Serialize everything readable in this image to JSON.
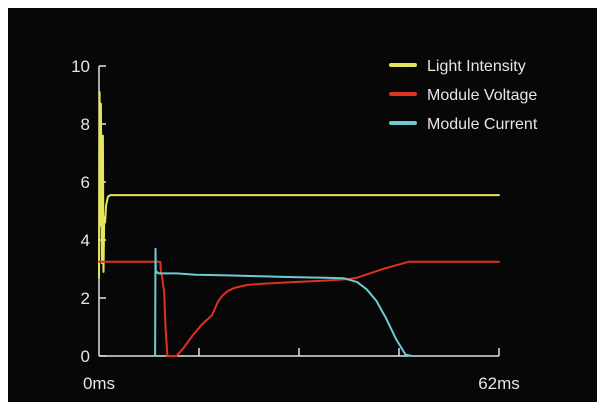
{
  "chart_data": {
    "type": "line",
    "title": "",
    "xlabel": "",
    "ylabel": "",
    "ylim": [
      0,
      10
    ],
    "yticks": [
      "0",
      "2",
      "4",
      "6",
      "8",
      "10"
    ],
    "xlim": [
      0,
      62
    ],
    "xtick_labels": [
      {
        "x": 0,
        "label": "0ms"
      },
      {
        "x": 62,
        "label": "62ms"
      }
    ],
    "legend_position": "top-right",
    "grid": false,
    "colors": {
      "background": "#070707",
      "axis": "#e0e0e0",
      "text": "#e6e6e6"
    },
    "series": [
      {
        "name": "Light Intensity",
        "color": "#e6e65a",
        "x": [
          0,
          0.1,
          0.2,
          0.3,
          0.45,
          0.6,
          0.7,
          0.8,
          0.95,
          1.1,
          1.4,
          1.8,
          2.5,
          62
        ],
        "y": [
          2.7,
          9.1,
          4.5,
          8.7,
          3.2,
          7.6,
          2.9,
          4.8,
          4.6,
          5.2,
          5.5,
          5.55,
          5.55,
          5.55
        ]
      },
      {
        "name": "Module Voltage",
        "color": "#e0301e",
        "x": [
          0,
          9.5,
          9.6,
          9.8,
          10.1,
          10.3,
          10.6,
          12.0,
          13.0,
          14.5,
          16.0,
          17.5,
          18.5,
          19.2,
          20.0,
          21.0,
          23.0,
          26.0,
          30.0,
          35.0,
          38.5,
          40.0,
          44.0,
          48.0,
          52.0,
          62
        ],
        "y": [
          3.25,
          3.25,
          2.9,
          2.7,
          2.2,
          1.0,
          0,
          0,
          0.25,
          0.7,
          1.1,
          1.4,
          1.9,
          2.1,
          2.25,
          2.35,
          2.45,
          2.5,
          2.55,
          2.6,
          2.65,
          2.7,
          3.0,
          3.25,
          3.25,
          3.25
        ]
      },
      {
        "name": "Module Current",
        "color": "#6fc9d2",
        "x": [
          8.7,
          8.75,
          8.8,
          9.0,
          9.2,
          12.0,
          15.0,
          20.0,
          25.0,
          30.0,
          35.0,
          38.0,
          40.0,
          41.5,
          43.0,
          44.5,
          46.0,
          47.5,
          48.5
        ],
        "y": [
          0,
          3.7,
          2.85,
          2.9,
          2.85,
          2.85,
          2.8,
          2.78,
          2.75,
          2.72,
          2.7,
          2.68,
          2.55,
          2.3,
          1.9,
          1.3,
          0.6,
          0.05,
          0
        ]
      }
    ]
  }
}
